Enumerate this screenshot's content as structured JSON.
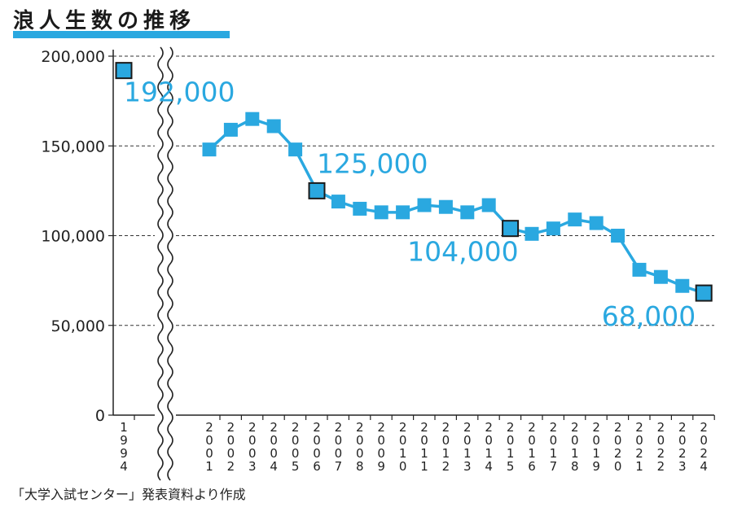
{
  "title": "浪人生数の推移",
  "source": "「大学入試センター」発表資料より作成",
  "chart_data": {
    "type": "line",
    "title": "浪人生数の推移",
    "xlabel": "",
    "ylabel": "",
    "ylim": [
      0,
      200000
    ],
    "yticks": [
      0,
      50000,
      100000,
      150000,
      200000
    ],
    "ytick_labels": [
      "0",
      "50,000",
      "100,000",
      "150,000",
      "200,000"
    ],
    "axis_break": "between 1994 and 2001",
    "line_color": "#2aa8e0",
    "highlight_color": "#2aa8e0",
    "categories": [
      "1994",
      "2001",
      "2002",
      "2003",
      "2004",
      "2005",
      "2006",
      "2007",
      "2008",
      "2009",
      "2010",
      "2011",
      "2012",
      "2013",
      "2014",
      "2015",
      "2016",
      "2017",
      "2018",
      "2019",
      "2020",
      "2021",
      "2022",
      "2023",
      "2024"
    ],
    "series": [
      {
        "name": "浪人生数",
        "values": [
          192000,
          148000,
          159000,
          165000,
          161000,
          148000,
          125000,
          119000,
          115000,
          113000,
          113000,
          117000,
          116000,
          113000,
          117000,
          104000,
          101000,
          104000,
          109000,
          107000,
          100000,
          81000,
          77000,
          72000,
          68000
        ]
      }
    ],
    "highlighted": [
      {
        "category": "1994",
        "label": "192,000"
      },
      {
        "category": "2006",
        "label": "125,000"
      },
      {
        "category": "2015",
        "label": "104,000"
      },
      {
        "category": "2024",
        "label": "68,000"
      }
    ]
  }
}
